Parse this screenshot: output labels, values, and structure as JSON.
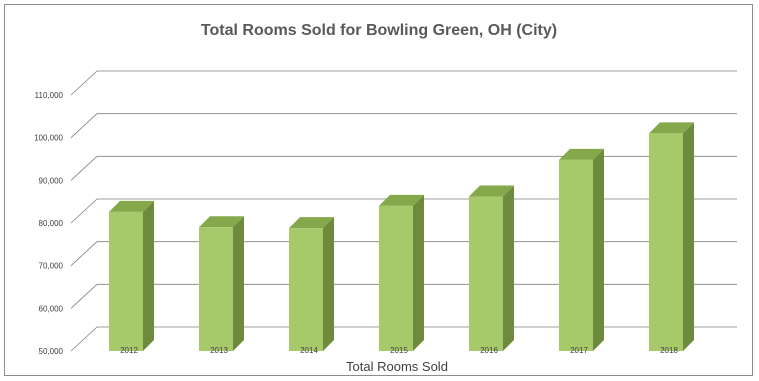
{
  "chart_data": {
    "type": "bar",
    "title": "Total Rooms Sold for Bowling Green, OH (City)",
    "xlabel": "Total Rooms Sold",
    "ylabel": "",
    "categories": [
      "2012",
      "2013",
      "2014",
      "2015",
      "2016",
      "2017",
      "2018"
    ],
    "values": [
      82600,
      79000,
      78800,
      84000,
      86200,
      94800,
      101000
    ],
    "ylim": [
      50000,
      110000
    ],
    "yticks": [
      "50,000",
      "60,000",
      "70,000",
      "80,000",
      "90,000",
      "100,000",
      "110,000"
    ],
    "grid": true,
    "legend": "none",
    "style": "3d-column",
    "colors": {
      "bar_front": "#a6c96a",
      "bar_side": "#6e8a3c",
      "bar_top": "#84a84a",
      "grid": "#808080",
      "floor": "#d9d9d9"
    }
  }
}
